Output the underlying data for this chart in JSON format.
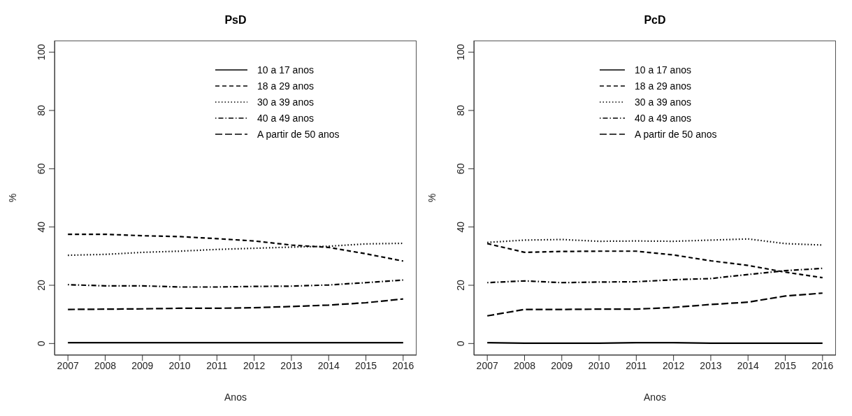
{
  "chart_data": [
    {
      "type": "line",
      "title": "PsD",
      "xlabel": "Anos",
      "ylabel": "%",
      "x": [
        2007,
        2008,
        2009,
        2010,
        2011,
        2012,
        2013,
        2014,
        2015,
        2016
      ],
      "xlim": [
        2006.64,
        2016.36
      ],
      "xticks": [
        2007,
        2008,
        2009,
        2010,
        2011,
        2012,
        2013,
        2014,
        2015,
        2016
      ],
      "ylim": [
        -4,
        104
      ],
      "yticks": [
        0,
        20,
        40,
        60,
        80,
        100
      ],
      "grid": false,
      "legend": "top right",
      "marker": "none",
      "series": [
        {
          "name": "10 a 17 anos",
          "color": "#000000",
          "line_style": "solid",
          "values": [
            0.3,
            0.3,
            0.3,
            0.3,
            0.3,
            0.3,
            0.3,
            0.3,
            0.3,
            0.3
          ]
        },
        {
          "name": "18 a 29 anos",
          "color": "#000000",
          "line_style": "dashed",
          "values": [
            37.5,
            37.5,
            37.0,
            36.7,
            36.0,
            35.2,
            33.8,
            33.0,
            30.8,
            28.3
          ]
        },
        {
          "name": "30 a 39 anos",
          "color": "#000000",
          "line_style": "dotted",
          "values": [
            30.3,
            30.6,
            31.3,
            31.7,
            32.3,
            32.7,
            33.1,
            33.4,
            34.2,
            34.4
          ]
        },
        {
          "name": "40 a 49 anos",
          "color": "#000000",
          "line_style": "dashdot",
          "values": [
            20.2,
            19.8,
            19.8,
            19.4,
            19.4,
            19.6,
            19.7,
            20.1,
            20.9,
            21.8
          ]
        },
        {
          "name": "A partir de 50 anos",
          "color": "#000000",
          "line_style": "longdash",
          "values": [
            11.7,
            11.8,
            11.9,
            12.1,
            12.1,
            12.3,
            12.7,
            13.2,
            14.0,
            15.3
          ]
        }
      ]
    },
    {
      "type": "line",
      "title": "PcD",
      "xlabel": "Anos",
      "ylabel": "%",
      "x": [
        2007,
        2008,
        2009,
        2010,
        2011,
        2012,
        2013,
        2014,
        2015,
        2016
      ],
      "xlim": [
        2006.64,
        2016.36
      ],
      "xticks": [
        2007,
        2008,
        2009,
        2010,
        2011,
        2012,
        2013,
        2014,
        2015,
        2016
      ],
      "ylim": [
        -4,
        104
      ],
      "yticks": [
        0,
        20,
        40,
        60,
        80,
        100
      ],
      "grid": false,
      "legend": "top",
      "marker": "none",
      "series": [
        {
          "name": "10 a 17 anos",
          "color": "#000000",
          "line_style": "solid",
          "values": [
            0.3,
            0.1,
            0.1,
            0.1,
            0.3,
            0.3,
            0.1,
            0.1,
            0.1,
            0.1
          ]
        },
        {
          "name": "18 a 29 anos",
          "color": "#000000",
          "line_style": "dashed",
          "values": [
            34.3,
            31.3,
            31.6,
            31.7,
            31.7,
            30.4,
            28.4,
            26.8,
            24.5,
            22.6
          ]
        },
        {
          "name": "30 a 39 anos",
          "color": "#000000",
          "line_style": "dotted",
          "values": [
            34.7,
            35.5,
            35.7,
            35.1,
            35.2,
            35.1,
            35.5,
            35.9,
            34.3,
            33.8
          ]
        },
        {
          "name": "40 a 49 anos",
          "color": "#000000",
          "line_style": "dashdot",
          "values": [
            20.9,
            21.5,
            20.9,
            21.1,
            21.2,
            21.9,
            22.3,
            23.7,
            25.0,
            25.8
          ]
        },
        {
          "name": "A partir de 50 anos",
          "color": "#000000",
          "line_style": "longdash",
          "values": [
            9.5,
            11.7,
            11.7,
            11.8,
            11.8,
            12.4,
            13.4,
            14.2,
            16.3,
            17.3
          ]
        }
      ]
    }
  ]
}
